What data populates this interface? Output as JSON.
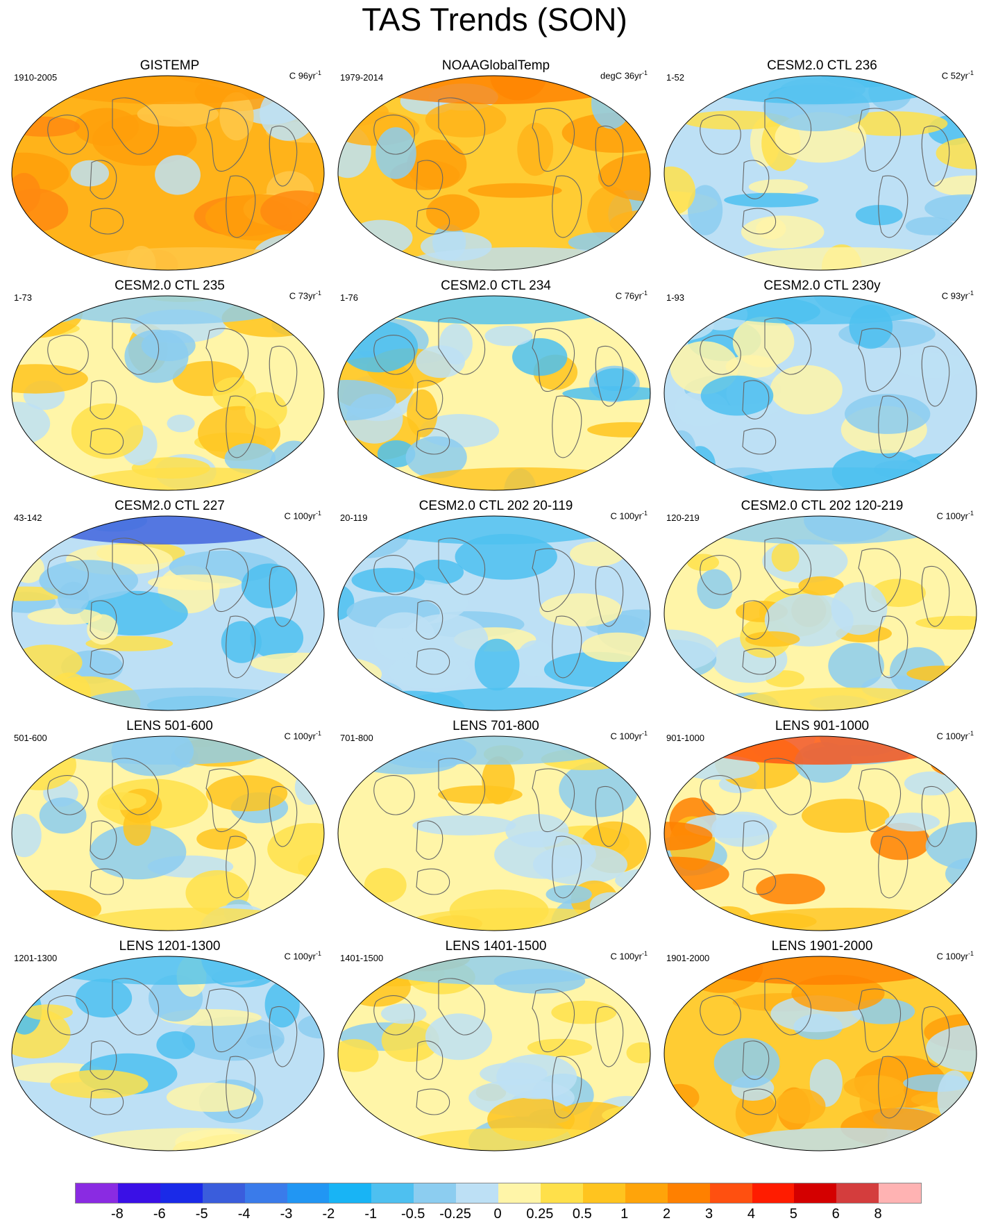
{
  "title": "TAS Trends (SON)",
  "panels": [
    {
      "title": "GISTEMP",
      "left": "1910-2005",
      "units": "C",
      "rate": "96",
      "rate_unit": "yr",
      "rate_exp": "-1",
      "tone": "orange-warm"
    },
    {
      "title": "NOAAGlobalTemp",
      "left": "1979-2014",
      "units": "degC",
      "rate": "36",
      "rate_unit": "yr",
      "rate_exp": "-1",
      "tone": "orange-mixed"
    },
    {
      "title": "CESM2.0 CTL 236",
      "left": "1-52",
      "units": "C",
      "rate": "52",
      "rate_unit": "yr",
      "rate_exp": "-1",
      "tone": "blue-mixed"
    },
    {
      "title": "CESM2.0 CTL 235",
      "left": "1-73",
      "units": "C",
      "rate": "73",
      "rate_unit": "yr",
      "rate_exp": "-1",
      "tone": "yellow-mixed"
    },
    {
      "title": "CESM2.0 CTL 234",
      "left": "1-76",
      "units": "C",
      "rate": "76",
      "rate_unit": "yr",
      "rate_exp": "-1",
      "tone": "yellow-bluenorth"
    },
    {
      "title": "CESM2.0 CTL 230y",
      "left": "1-93",
      "units": "C",
      "rate": "93",
      "rate_unit": "yr",
      "rate_exp": "-1",
      "tone": "blue-cool"
    },
    {
      "title": "CESM2.0 CTL 227",
      "left": "43-142",
      "units": "C",
      "rate": "100",
      "rate_unit": "yr",
      "rate_exp": "-1",
      "tone": "deepblue-north"
    },
    {
      "title": "CESM2.0 CTL 202 20-119",
      "left": "20-119",
      "units": "C",
      "rate": "100",
      "rate_unit": "yr",
      "rate_exp": "-1",
      "tone": "blue-cool"
    },
    {
      "title": "CESM2.0 CTL 202 120-219",
      "left": "120-219",
      "units": "C",
      "rate": "100",
      "rate_unit": "yr",
      "rate_exp": "-1",
      "tone": "yellow-mixed"
    },
    {
      "title": "LENS 501-600",
      "left": "501-600",
      "units": "C",
      "rate": "100",
      "rate_unit": "yr",
      "rate_exp": "-1",
      "tone": "yellow-mixed"
    },
    {
      "title": "LENS 701-800",
      "left": "701-800",
      "units": "C",
      "rate": "100",
      "rate_unit": "yr",
      "rate_exp": "-1",
      "tone": "yellow-mixed"
    },
    {
      "title": "LENS 901-1000",
      "left": "901-1000",
      "units": "C",
      "rate": "100",
      "rate_unit": "yr",
      "rate_exp": "-1",
      "tone": "yellow-rednorth"
    },
    {
      "title": "LENS 1201-1300",
      "left": "1201-1300",
      "units": "C",
      "rate": "100",
      "rate_unit": "yr",
      "rate_exp": "-1",
      "tone": "blue-mixed"
    },
    {
      "title": "LENS 1401-1500",
      "left": "1401-1500",
      "units": "C",
      "rate": "100",
      "rate_unit": "yr",
      "rate_exp": "-1",
      "tone": "yellow-mixed"
    },
    {
      "title": "LENS 1901-2000",
      "left": "1901-2000",
      "units": "C",
      "rate": "100",
      "rate_unit": "yr",
      "rate_exp": "-1",
      "tone": "orange-mixed"
    }
  ],
  "colorbar": {
    "colors": [
      "#8a2be2",
      "#3a10e6",
      "#1a2ae8",
      "#3a5ddc",
      "#3a7bea",
      "#2196f3",
      "#18b4f5",
      "#4ec0f0",
      "#8ccdf0",
      "#bde0f5",
      "#fff5a8",
      "#ffe04a",
      "#ffc41f",
      "#ffa40a",
      "#ff8000",
      "#ff5010",
      "#ff1c00",
      "#d40000",
      "#d43d3d",
      "#ffb3b3"
    ],
    "labels": [
      "-8",
      "-6",
      "-5",
      "-4",
      "-3",
      "-2",
      "-1",
      "-0.5",
      "-0.25",
      "0",
      "0.25",
      "0.5",
      "1",
      "2",
      "3",
      "4",
      "5",
      "6",
      "8"
    ]
  },
  "tones": {
    "orange-warm": {
      "base": "#ffb31a",
      "blobs": [
        "#ff9f0a",
        "#ffc84a",
        "#ff8a10",
        "#bde0f5"
      ]
    },
    "orange-mixed": {
      "base": "#ffcc33",
      "blobs": [
        "#ff9f0a",
        "#bde0f5",
        "#8ccdf0",
        "#ffb31a"
      ]
    },
    "blue-mixed": {
      "base": "#bde0f5",
      "blobs": [
        "#8ccdf0",
        "#fff5a8",
        "#4ec0f0",
        "#ffe04a"
      ]
    },
    "yellow-mixed": {
      "base": "#fff5a8",
      "blobs": [
        "#bde0f5",
        "#ffe04a",
        "#8ccdf0",
        "#ffc41f"
      ]
    },
    "yellow-bluenorth": {
      "base": "#fff5a8",
      "blobs": [
        "#bde0f5",
        "#ffc41f",
        "#8ccdf0",
        "#4ec0f0"
      ]
    },
    "blue-cool": {
      "base": "#bde0f5",
      "blobs": [
        "#8ccdf0",
        "#4ec0f0",
        "#fff5a8",
        "#bde0f5"
      ]
    },
    "deepblue-north": {
      "base": "#bde0f5",
      "blobs": [
        "#fff5a8",
        "#8ccdf0",
        "#4ec0f0",
        "#ffe04a"
      ]
    },
    "yellow-rednorth": {
      "base": "#fff5a8",
      "blobs": [
        "#bde0f5",
        "#ffc41f",
        "#ff8000",
        "#8ccdf0"
      ]
    }
  }
}
